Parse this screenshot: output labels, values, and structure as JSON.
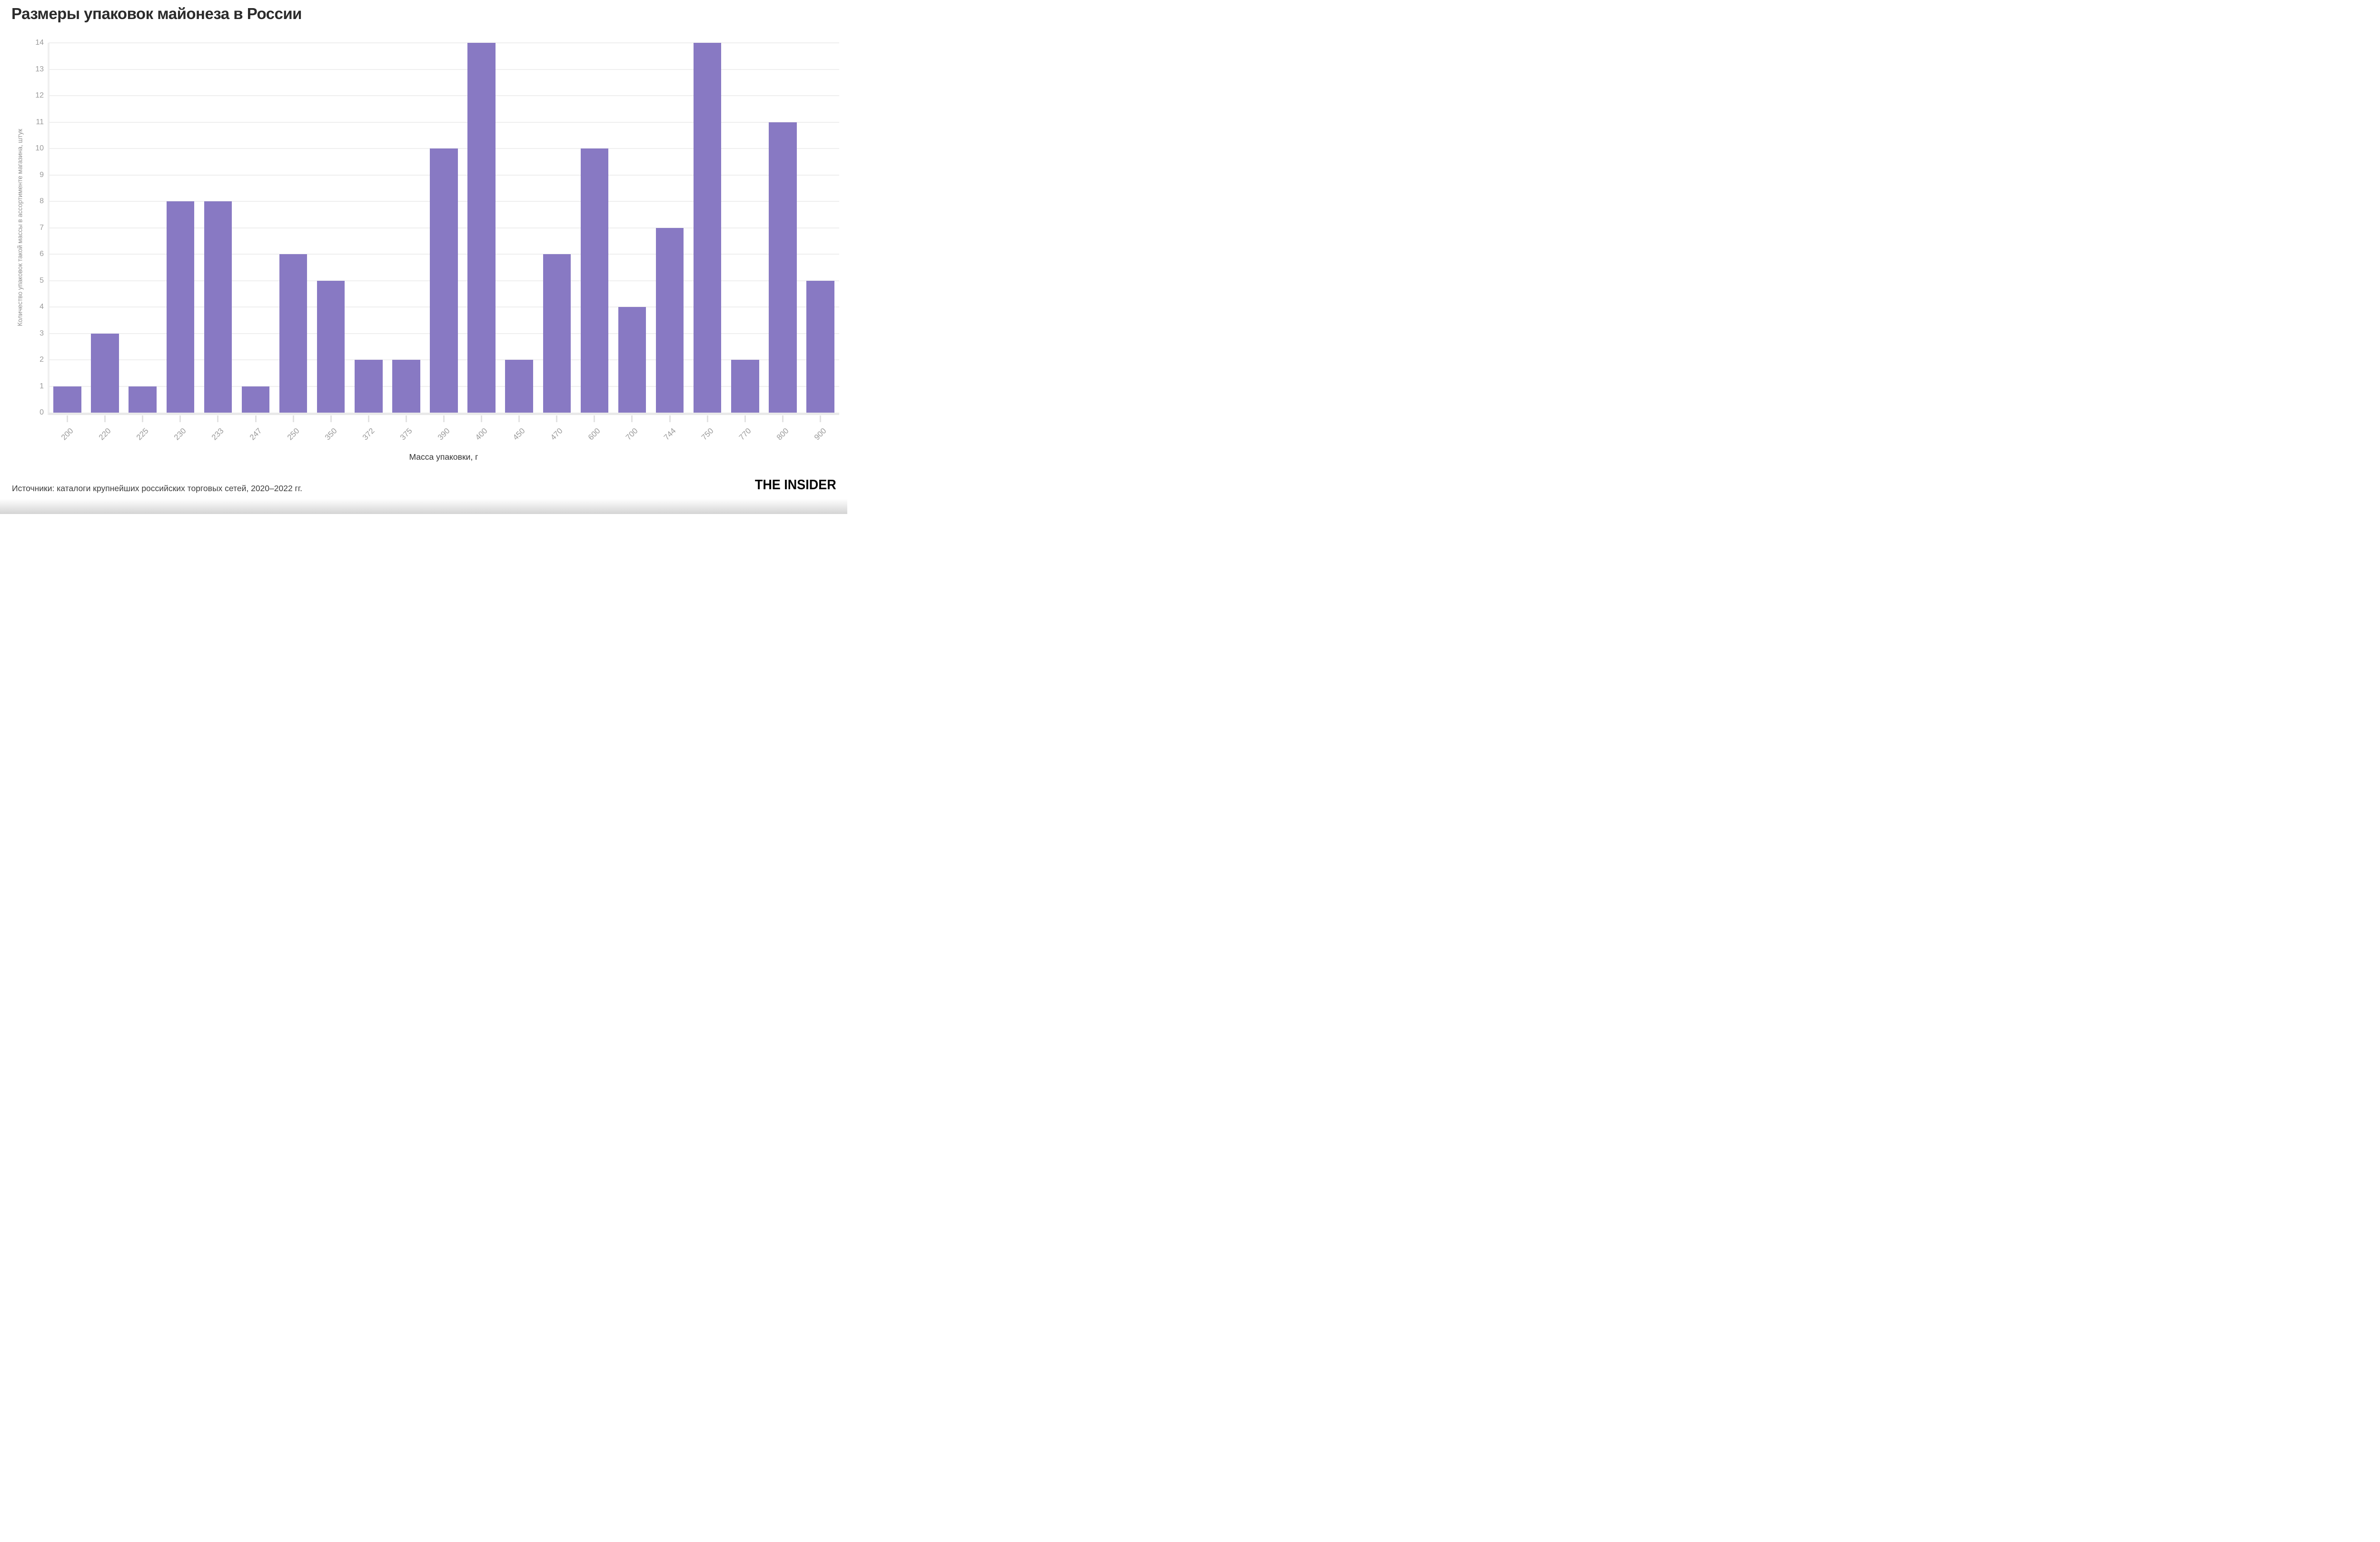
{
  "title": "Размеры упаковок майонеза в России",
  "source": "Источники: каталоги крупнейших российских торговых сетей, 2020–2022 гг.",
  "logo": "THE INSIDER",
  "chart_data": {
    "type": "bar",
    "title": "Размеры упаковок майонеза в России",
    "categories": [
      "200",
      "220",
      "225",
      "230",
      "233",
      "247",
      "250",
      "350",
      "372",
      "375",
      "390",
      "400",
      "450",
      "470",
      "600",
      "700",
      "744",
      "750",
      "770",
      "800",
      "900"
    ],
    "values": [
      1,
      3,
      1,
      8,
      8,
      1,
      6,
      5,
      2,
      2,
      10,
      14,
      2,
      6,
      10,
      4,
      7,
      14,
      2,
      11,
      5
    ],
    "xlabel": "Масса упаковки, г",
    "ylabel": "Количество упаковок такой массы в ассортименте магазина, штук",
    "ylim": [
      0,
      14
    ],
    "yticks": [
      0,
      1,
      2,
      3,
      4,
      5,
      6,
      7,
      8,
      9,
      10,
      11,
      12,
      13,
      14
    ],
    "grid": true,
    "legend": "none",
    "bar_color": "#8879C3",
    "gridline_color": "#efefef",
    "axis_line_color": "#e9e9e9",
    "tick_label_color": "#9a9a9a"
  }
}
